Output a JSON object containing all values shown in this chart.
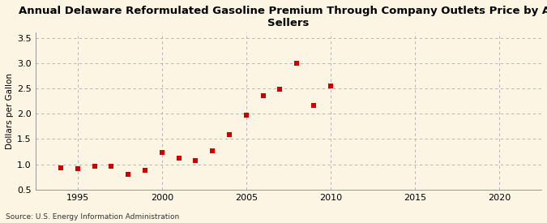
{
  "title": "Annual Delaware Reformulated Gasoline Premium Through Company Outlets Price by All\nSellers",
  "ylabel": "Dollars per Gallon",
  "source": "Source: U.S. Energy Information Administration",
  "years": [
    1994,
    1995,
    1996,
    1997,
    1998,
    1999,
    2000,
    2001,
    2002,
    2003,
    2004,
    2005,
    2006,
    2007,
    2008,
    2009,
    2010
  ],
  "values": [
    0.93,
    0.92,
    0.97,
    0.97,
    0.8,
    0.88,
    1.23,
    1.13,
    1.07,
    1.27,
    1.58,
    1.97,
    2.35,
    2.48,
    2.99,
    2.17,
    2.55
  ],
  "xlim": [
    1992.5,
    2022.5
  ],
  "ylim": [
    0.5,
    3.6
  ],
  "xticks": [
    1995,
    2000,
    2005,
    2010,
    2015,
    2020
  ],
  "yticks": [
    0.5,
    1.0,
    1.5,
    2.0,
    2.5,
    3.0,
    3.5
  ],
  "marker_color": "#cc0000",
  "marker": "s",
  "marker_size": 4,
  "bg_color": "#fdf5e4",
  "grid_color": "#aaaaaa",
  "title_fontsize": 9.5,
  "label_fontsize": 7.5,
  "tick_fontsize": 8,
  "source_fontsize": 6.5
}
